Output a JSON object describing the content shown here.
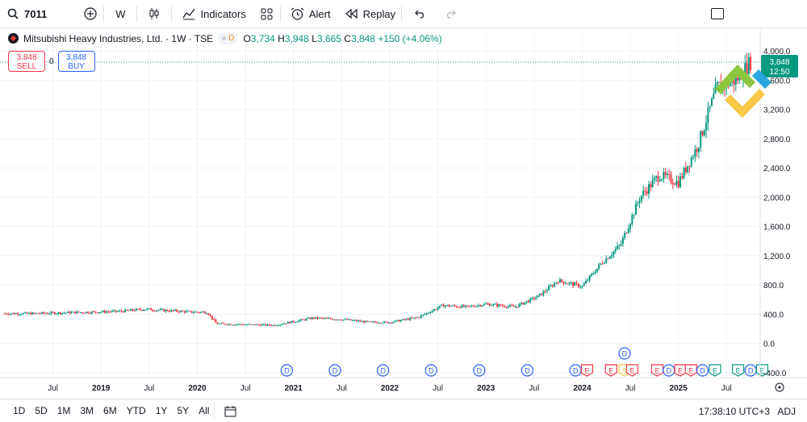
{
  "toolbar": {
    "symbol": "7011",
    "interval": "W",
    "indicators_label": "Indicators",
    "alert_label": "Alert",
    "replay_label": "Replay"
  },
  "legend": {
    "title": "Mitsubishi Heavy Industries, Ltd. · 1W · TSE",
    "source_badge": "D",
    "open_label": "O",
    "open": "3,734",
    "high_label": "H",
    "high": "3,948",
    "low_label": "L",
    "low": "3,665",
    "close_label": "C",
    "close": "3,848",
    "change": "+150 (+4.06%)"
  },
  "trade": {
    "sell_price": "3,848",
    "sell_label": "SELL",
    "spread": "0",
    "buy_price": "3,848",
    "buy_label": "BUY"
  },
  "price_tag": {
    "price": "3,848",
    "countdown": "12:50"
  },
  "colors": {
    "up": "#089981",
    "down": "#f23645",
    "accent": "#2962ff",
    "brand_green": "#8cc63f",
    "brand_yellow": "#f7c948"
  },
  "chart_data": {
    "type": "candlestick",
    "interval": "1W",
    "y_ticks": [
      "4,000.0",
      "3,600.0",
      "3,200.0",
      "2,800.0",
      "2,400.0",
      "2,000.0",
      "1,600.0",
      "1,200.0",
      "800.0",
      "400.0",
      "0.0",
      "-400.0"
    ],
    "y_tick_values": [
      4000,
      3600,
      3200,
      2800,
      2400,
      2000,
      1600,
      1200,
      800,
      400,
      0,
      -400
    ],
    "ylim": [
      -400,
      4100
    ],
    "x_ticks": [
      "Jul",
      "2019",
      "Jul",
      "2020",
      "Jul",
      "2021",
      "Jul",
      "2022",
      "Jul",
      "2023",
      "Jul",
      "2024",
      "Jul",
      "2025",
      "Jul"
    ],
    "x_tick_times": [
      2018.5,
      2019.0,
      2019.5,
      2020.0,
      2020.5,
      2021.0,
      2021.5,
      2022.0,
      2022.5,
      2023.0,
      2023.5,
      2024.0,
      2024.5,
      2025.0,
      2025.5
    ],
    "price_anchors": [
      [
        2018.3,
        410
      ],
      [
        2018.6,
        420
      ],
      [
        2018.9,
        430
      ],
      [
        2019.2,
        440
      ],
      [
        2019.45,
        470
      ],
      [
        2019.7,
        450
      ],
      [
        2019.95,
        430
      ],
      [
        2020.1,
        430
      ],
      [
        2020.2,
        270
      ],
      [
        2020.5,
        260
      ],
      [
        2020.8,
        250
      ],
      [
        2021.0,
        300
      ],
      [
        2021.2,
        350
      ],
      [
        2021.5,
        330
      ],
      [
        2021.8,
        290
      ],
      [
        2022.0,
        290
      ],
      [
        2022.3,
        360
      ],
      [
        2022.55,
        520
      ],
      [
        2022.8,
        500
      ],
      [
        2023.0,
        540
      ],
      [
        2023.3,
        500
      ],
      [
        2023.55,
        650
      ],
      [
        2023.75,
        860
      ],
      [
        2024.0,
        780
      ],
      [
        2024.2,
        1100
      ],
      [
        2024.4,
        1350
      ],
      [
        2024.6,
        2000
      ],
      [
        2024.8,
        2300
      ],
      [
        2025.0,
        2200
      ],
      [
        2025.2,
        2700
      ],
      [
        2025.4,
        3500
      ],
      [
        2025.6,
        3600
      ],
      [
        2025.75,
        3850
      ]
    ],
    "event_markers": [
      {
        "label": "D",
        "time": 2020.93
      },
      {
        "label": "D",
        "time": 2021.43
      },
      {
        "label": "D",
        "time": 2021.93
      },
      {
        "label": "D",
        "time": 2022.43
      },
      {
        "label": "D",
        "time": 2022.93
      },
      {
        "label": "D",
        "time": 2023.43
      },
      {
        "label": "D",
        "time": 2023.93
      },
      {
        "label": "E",
        "time": 2024.05
      },
      {
        "label": "E",
        "time": 2024.3
      },
      {
        "label": "S",
        "time": 2024.44
      },
      {
        "label": "E",
        "time": 2024.52
      },
      {
        "label": "D",
        "time": 2024.44
      },
      {
        "label": "E",
        "time": 2024.78
      },
      {
        "label": "D",
        "time": 2024.9
      },
      {
        "label": "E",
        "time": 2025.02
      },
      {
        "label": "E",
        "time": 2025.13
      },
      {
        "label": "D",
        "time": 2025.25
      },
      {
        "label": "E",
        "time": 2025.38
      },
      {
        "label": "E",
        "time": 2025.62
      },
      {
        "label": "D",
        "time": 2025.75
      },
      {
        "label": "E",
        "time": 2025.87
      }
    ]
  },
  "bottom": {
    "ranges": [
      "1D",
      "5D",
      "1M",
      "3M",
      "6M",
      "YTD",
      "1Y",
      "5Y",
      "All"
    ],
    "clock": "17:38:10 UTC+3",
    "adj": "ADJ"
  }
}
